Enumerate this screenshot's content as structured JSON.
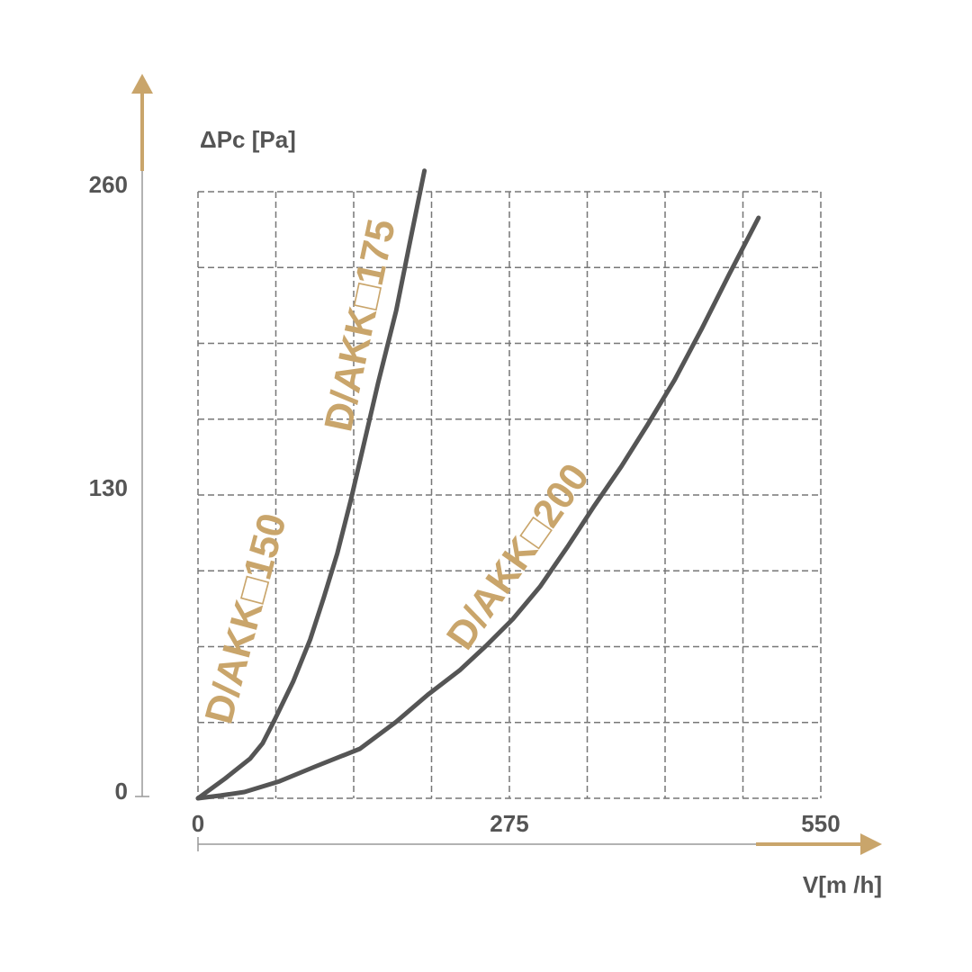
{
  "chart_data": {
    "type": "line",
    "y_label": "ΔPc [Pa]",
    "x_label": "V[m /h]",
    "xlim": [
      0,
      550
    ],
    "ylim": [
      0,
      260
    ],
    "xticks": [
      0,
      {
        "value": 68.75,
        "label": null
      },
      {
        "value": 137.5,
        "label": null
      },
      {
        "value": 206.25,
        "label": null
      },
      275,
      {
        "value": 343.75,
        "label": null
      },
      {
        "value": 412.5,
        "label": null
      },
      {
        "value": 481.25,
        "label": null
      },
      550
    ],
    "yticks": [
      0,
      {
        "value": 32.5,
        "label": null
      },
      {
        "value": 65,
        "label": null
      },
      {
        "value": 97.5,
        "label": null
      },
      130,
      {
        "value": 162.5,
        "label": null
      },
      {
        "value": 195,
        "label": null
      },
      {
        "value": 227.5,
        "label": null
      },
      260
    ],
    "grid": true,
    "annotations": [
      "D/AKK□150",
      "D/AKK□175",
      "D/AKK□200"
    ],
    "series": [
      {
        "color": "#555555",
        "x": [
          0,
          24,
          46,
          57,
          68,
          84,
          99,
          111,
          123,
          135,
          147,
          159,
          175,
          187,
          200
        ],
        "values": [
          0,
          8.5,
          17,
          23.5,
          34,
          50,
          68,
          86,
          105,
          128,
          153,
          178,
          209,
          238,
          269
        ]
      },
      {
        "color": "#555555",
        "x": [
          0,
          20,
          41,
          72,
          103,
          143,
          175,
          203,
          231,
          254,
          278,
          302,
          326,
          350,
          374,
          397,
          421,
          445,
          469,
          495
        ],
        "values": [
          0,
          1.2,
          2.7,
          7.3,
          13.5,
          21.2,
          32.8,
          44.4,
          54.8,
          65.2,
          76.8,
          90.7,
          107.6,
          125.4,
          142.4,
          160.1,
          179.4,
          201.4,
          224.5,
          248.8
        ]
      }
    ]
  }
}
